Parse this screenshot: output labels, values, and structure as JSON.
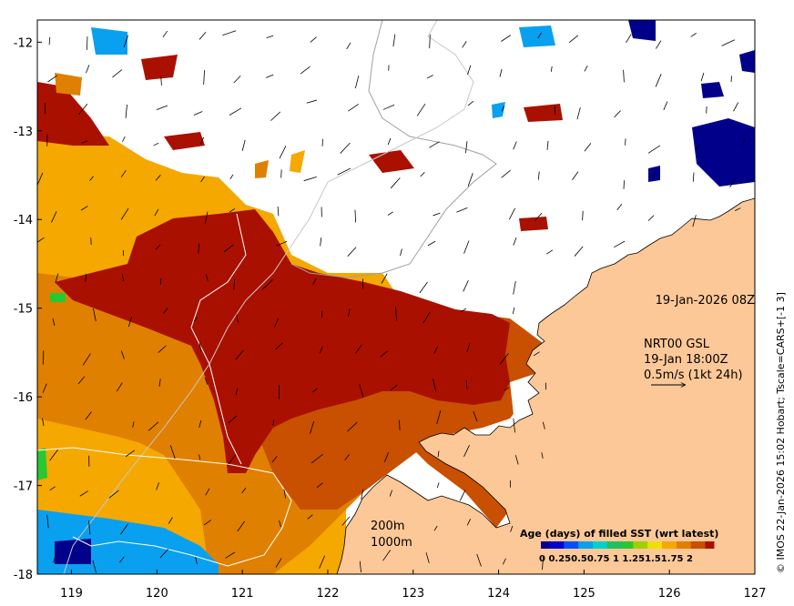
{
  "map": {
    "date_label": "19-Jan-2026 08Z",
    "currents": {
      "source": "NRT00 GSL",
      "time": "19-Jan 18:00Z",
      "scale": "0.5m/s (1kt 24h)"
    },
    "contours": [
      "200m",
      "1000m"
    ],
    "credit": "© IMOS 22-Jan-2026 15:02 Hobart; Tscale=CARS+[-1 3]",
    "x_ticks": [
      "119",
      "120",
      "121",
      "122",
      "123",
      "124",
      "125",
      "126",
      "127"
    ],
    "y_ticks": [
      "-12",
      "-13",
      "-14",
      "-15",
      "-16",
      "-17",
      "-18"
    ],
    "x_range": [
      118.6,
      127.0
    ],
    "y_range": [
      -18.0,
      -11.75
    ],
    "colorbar": {
      "title": "Age (days) of filled SST (wrt latest)",
      "labels": "0  0.250.50.75  1  1.251.51.75  2",
      "range": [
        0,
        2
      ]
    },
    "colors": {
      "land": "#fdc897",
      "age_0": "#00008b",
      "age_0_5": "#0aa0f0",
      "age_1": "#28c832",
      "age_1_25": "#f5a800",
      "age_1_5": "#e08000",
      "age_1_75": "#c85000",
      "age_2": "#aa1000"
    }
  }
}
